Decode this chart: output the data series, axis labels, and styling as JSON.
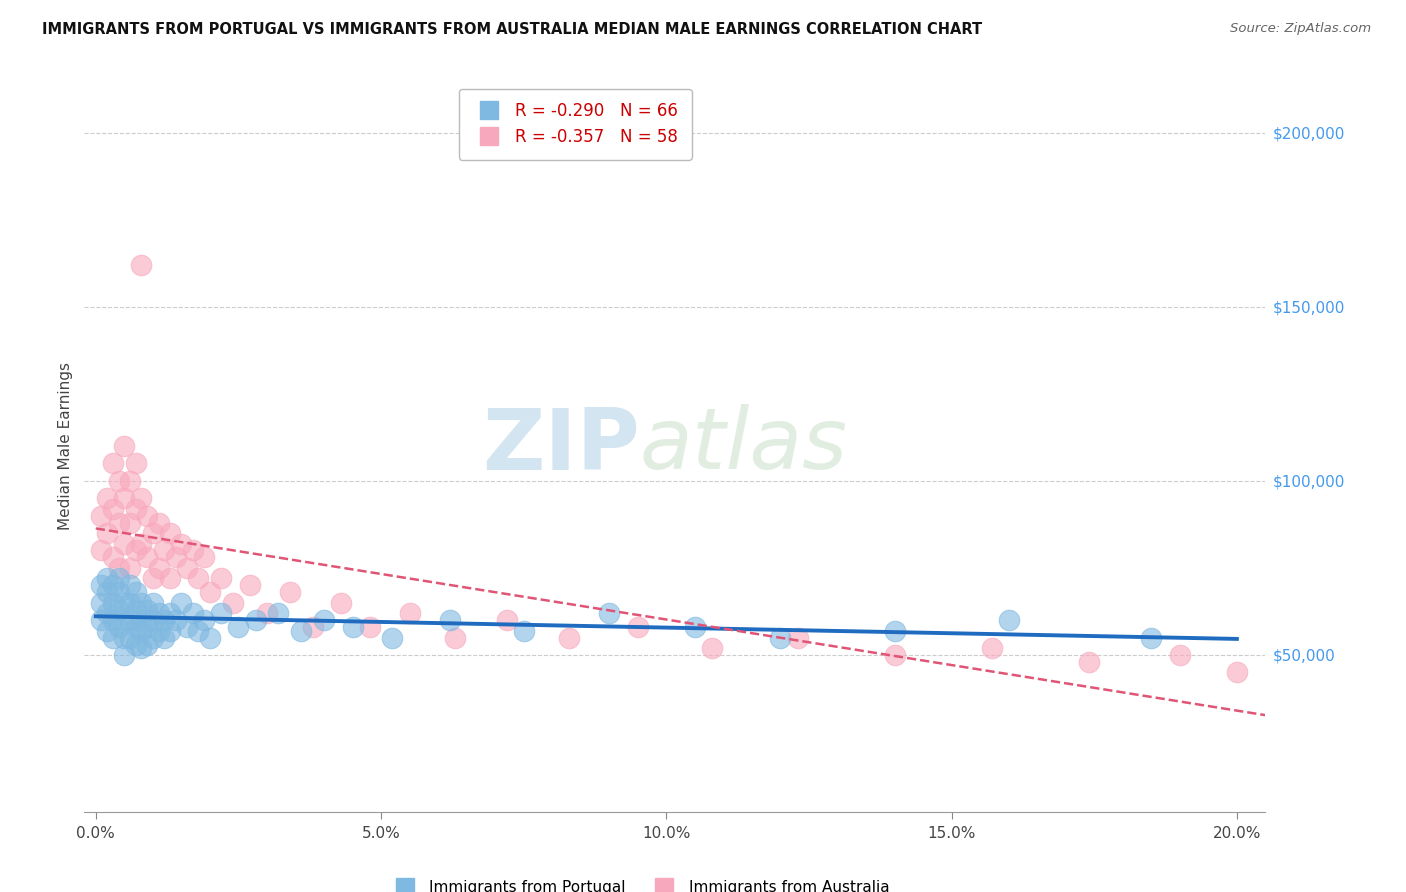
{
  "title": "IMMIGRANTS FROM PORTUGAL VS IMMIGRANTS FROM AUSTRALIA MEDIAN MALE EARNINGS CORRELATION CHART",
  "source": "Source: ZipAtlas.com",
  "ylabel": "Median Male Earnings",
  "xlim": [
    -0.002,
    0.205
  ],
  "ylim": [
    5000,
    215000
  ],
  "ylabel_ticks": [
    50000,
    100000,
    150000,
    200000
  ],
  "ylabel_labels": [
    "$50,000",
    "$100,000",
    "$150,000",
    "$200,000"
  ],
  "xlabel_vals": [
    0.0,
    0.05,
    0.1,
    0.15,
    0.2
  ],
  "xlabel_ticks": [
    "0.0%",
    "5.0%",
    "10.0%",
    "15.0%",
    "20.0%"
  ],
  "r1": -0.29,
  "n1": 66,
  "r2": -0.357,
  "n2": 58,
  "color_blue": "#7fb8e0",
  "color_pink": "#f8a8bc",
  "color_blue_line": "#1f6bbf",
  "color_pink_line": "#e05575",
  "legend1_label": "Immigrants from Portugal",
  "legend2_label": "Immigrants from Australia",
  "portugal_x": [
    0.001,
    0.001,
    0.001,
    0.002,
    0.002,
    0.002,
    0.002,
    0.003,
    0.003,
    0.003,
    0.003,
    0.004,
    0.004,
    0.004,
    0.004,
    0.005,
    0.005,
    0.005,
    0.005,
    0.006,
    0.006,
    0.006,
    0.006,
    0.007,
    0.007,
    0.007,
    0.007,
    0.008,
    0.008,
    0.008,
    0.008,
    0.009,
    0.009,
    0.009,
    0.01,
    0.01,
    0.01,
    0.011,
    0.011,
    0.012,
    0.012,
    0.013,
    0.013,
    0.014,
    0.015,
    0.016,
    0.017,
    0.018,
    0.019,
    0.02,
    0.022,
    0.025,
    0.028,
    0.032,
    0.036,
    0.04,
    0.045,
    0.052,
    0.062,
    0.075,
    0.09,
    0.105,
    0.12,
    0.14,
    0.16,
    0.185
  ],
  "portugal_y": [
    70000,
    65000,
    60000,
    72000,
    68000,
    62000,
    57000,
    65000,
    70000,
    60000,
    55000,
    68000,
    63000,
    58000,
    72000,
    65000,
    60000,
    55000,
    50000,
    70000,
    65000,
    60000,
    55000,
    68000,
    63000,
    58000,
    53000,
    65000,
    60000,
    57000,
    52000,
    63000,
    58000,
    53000,
    65000,
    60000,
    55000,
    62000,
    57000,
    60000,
    55000,
    62000,
    57000,
    60000,
    65000,
    58000,
    62000,
    57000,
    60000,
    55000,
    62000,
    58000,
    60000,
    62000,
    57000,
    60000,
    58000,
    55000,
    60000,
    57000,
    62000,
    58000,
    55000,
    57000,
    60000,
    55000
  ],
  "australia_x": [
    0.001,
    0.001,
    0.002,
    0.002,
    0.003,
    0.003,
    0.003,
    0.004,
    0.004,
    0.004,
    0.005,
    0.005,
    0.005,
    0.006,
    0.006,
    0.006,
    0.007,
    0.007,
    0.007,
    0.008,
    0.008,
    0.008,
    0.009,
    0.009,
    0.01,
    0.01,
    0.011,
    0.011,
    0.012,
    0.013,
    0.013,
    0.014,
    0.015,
    0.016,
    0.017,
    0.018,
    0.019,
    0.02,
    0.022,
    0.024,
    0.027,
    0.03,
    0.034,
    0.038,
    0.043,
    0.048,
    0.055,
    0.063,
    0.072,
    0.083,
    0.095,
    0.108,
    0.123,
    0.14,
    0.157,
    0.174,
    0.19,
    0.2
  ],
  "australia_y": [
    90000,
    80000,
    95000,
    85000,
    105000,
    92000,
    78000,
    100000,
    88000,
    75000,
    110000,
    95000,
    82000,
    100000,
    88000,
    75000,
    105000,
    92000,
    80000,
    95000,
    82000,
    162000,
    78000,
    90000,
    85000,
    72000,
    88000,
    75000,
    80000,
    85000,
    72000,
    78000,
    82000,
    75000,
    80000,
    72000,
    78000,
    68000,
    72000,
    65000,
    70000,
    62000,
    68000,
    58000,
    65000,
    58000,
    62000,
    55000,
    60000,
    55000,
    58000,
    52000,
    55000,
    50000,
    52000,
    48000,
    50000,
    45000
  ]
}
